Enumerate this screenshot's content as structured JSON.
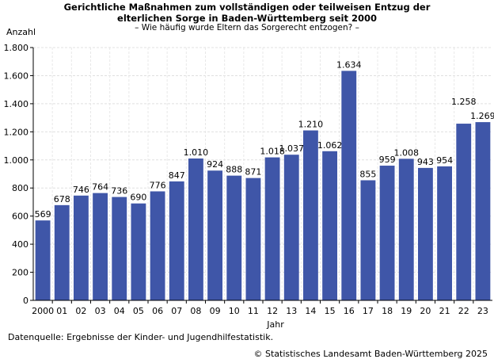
{
  "chart_data": {
    "type": "bar",
    "title_line1": "Gerichtliche Maßnahmen zum vollständigen oder teilweisen Entzug der",
    "title_line2": "elterlichen Sorge  in Baden-Württemberg seit  2000",
    "subtitle": "–  Wie häufig wurde Eltern das Sorgerecht entzogen? –",
    "ylabel": "Anzahl",
    "xlabel": "Jahr",
    "categories": [
      "2000",
      "01",
      "02",
      "03",
      "04",
      "05",
      "06",
      "07",
      "08",
      "09",
      "10",
      "11",
      "12",
      "13",
      "14",
      "15",
      "16",
      "17",
      "18",
      "19",
      "20",
      "21",
      "22",
      "23"
    ],
    "values": [
      569,
      678,
      746,
      764,
      736,
      690,
      776,
      847,
      1010,
      924,
      888,
      871,
      1018,
      1037,
      1210,
      1062,
      1634,
      855,
      959,
      1008,
      943,
      954,
      1258,
      1269
    ],
    "value_labels": [
      "569",
      "678",
      "746",
      "764",
      "736",
      "690",
      "776",
      "847",
      "1.010",
      "924",
      "888",
      "871",
      "1.018",
      "1.037",
      "1.210",
      "1.062",
      "1.634",
      "855",
      "959",
      "1.008",
      "943",
      "954",
      "1.258",
      "1.269"
    ],
    "ylim": [
      0,
      1800
    ],
    "yticks": [
      0,
      200,
      400,
      600,
      800,
      1000,
      1200,
      1400,
      1600,
      1800
    ],
    "ytick_labels": [
      "0",
      "200",
      "400",
      "600",
      "800",
      "1.000",
      "1.200",
      "1.400",
      "1.600",
      "1.800"
    ],
    "grid": true,
    "bar_color": "#3f56a8"
  },
  "footer": {
    "source": "Datenquelle: Ergebnisse der Kinder- und Jugendhilfestatistik.",
    "copyright": "© Statistisches Landesamt Baden-Württemberg 2025"
  }
}
